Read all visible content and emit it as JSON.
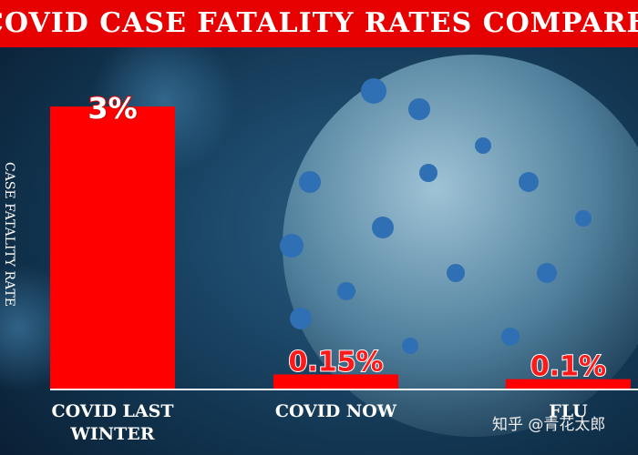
{
  "chart_data": {
    "type": "bar",
    "title": "COVID CASE FATALITY RATES COMPARED TO FLU",
    "y_label": "CASE FATALITY RATE",
    "categories": [
      "COVID LAST WINTER",
      "COVID NOW",
      "FLU"
    ],
    "values": [
      3,
      0.15,
      0.1
    ],
    "value_labels": [
      "3%",
      "0.15%",
      "0.1%"
    ],
    "color": "#ff0000",
    "ylim": [
      0,
      3
    ],
    "watermark": "知乎 @青花太郎"
  }
}
